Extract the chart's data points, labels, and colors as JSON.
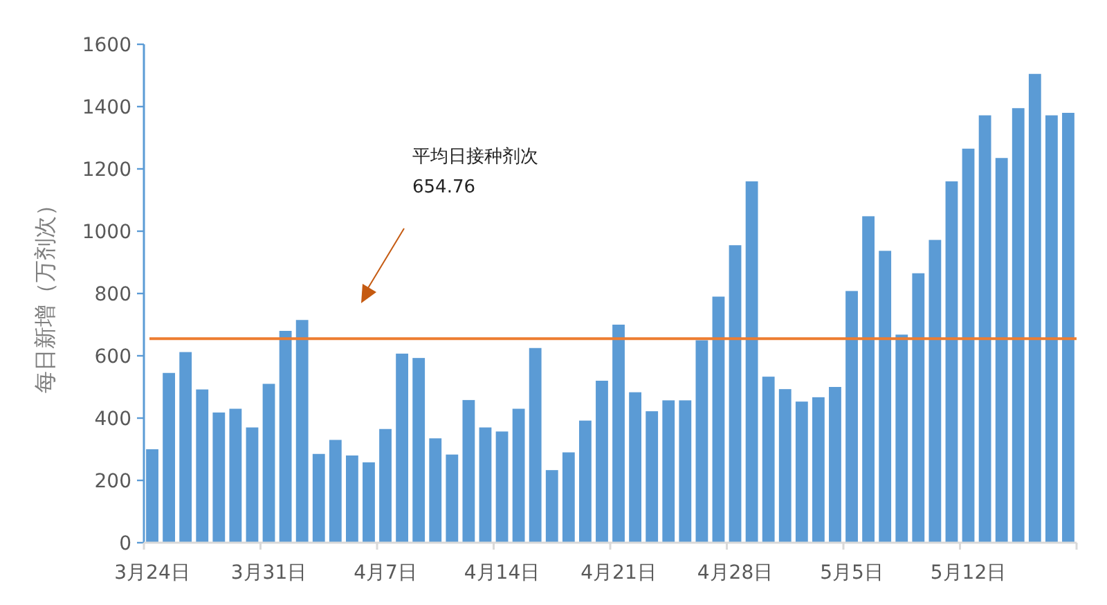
{
  "chart_data": {
    "type": "bar",
    "ylabel": "每日新增（万剂次）",
    "categories": [
      "3月24日",
      null,
      null,
      null,
      null,
      null,
      null,
      "3月31日",
      null,
      null,
      null,
      null,
      null,
      null,
      "4月7日",
      null,
      null,
      null,
      null,
      null,
      null,
      "4月14日",
      null,
      null,
      null,
      null,
      null,
      null,
      "4月21日",
      null,
      null,
      null,
      null,
      null,
      null,
      "4月28日",
      null,
      null,
      null,
      null,
      null,
      null,
      "5月5日",
      null,
      null,
      null,
      null,
      null,
      null,
      "5月12日",
      null,
      null,
      null,
      null,
      null,
      null
    ],
    "values": [
      300,
      545,
      612,
      492,
      418,
      430,
      370,
      510,
      680,
      715,
      285,
      330,
      280,
      258,
      365,
      607,
      593,
      335,
      283,
      458,
      370,
      357,
      430,
      625,
      233,
      290,
      392,
      520,
      700,
      483,
      422,
      457,
      457,
      650,
      790,
      955,
      1160,
      533,
      493,
      453,
      467,
      500,
      808,
      1048,
      937,
      668,
      865,
      972,
      1160,
      1265,
      1372,
      1235,
      1395,
      1505,
      1372,
      1380
    ],
    "color": "#5b9bd5",
    "ylim": [
      0,
      1600
    ],
    "yticks": [
      0,
      200,
      400,
      600,
      800,
      1000,
      1200,
      1400,
      1600
    ],
    "ref_lines": [
      {
        "axis": "y",
        "value": 654.76,
        "color": "#ed7d31"
      }
    ],
    "annotations": [
      "平均日接种剂次 654.76"
    ],
    "grid": false,
    "legend": false
  }
}
